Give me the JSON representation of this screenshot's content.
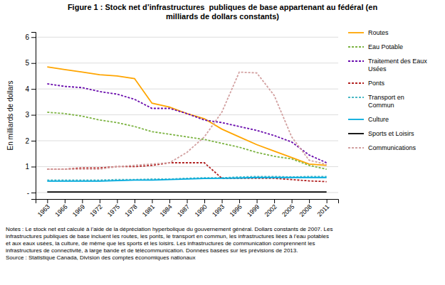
{
  "chart_data": {
    "type": "line",
    "title": "Figure 1 : Stock net d’infrastructures  publiques de base appartenant au fédéral (en\nmilliards de dollars constants)",
    "y_label": "En milliards de dollars",
    "x": [
      1963,
      1966,
      1969,
      1972,
      1975,
      1978,
      1981,
      1984,
      1987,
      1990,
      1993,
      1996,
      1999,
      2002,
      2005,
      2008,
      2011
    ],
    "series": [
      {
        "name": "Routes",
        "color": "#FFA500",
        "line_style": "solid",
        "values": [
          4.85,
          4.75,
          4.65,
          4.55,
          4.5,
          4.4,
          3.45,
          3.3,
          3.05,
          2.85,
          2.45,
          2.15,
          1.85,
          1.6,
          1.35,
          1.1,
          1.05
        ]
      },
      {
        "name": "Eau Potable",
        "color": "#7CB342",
        "line_style": "dotted",
        "values": [
          3.1,
          3.05,
          2.95,
          2.8,
          2.7,
          2.55,
          2.35,
          2.25,
          2.15,
          2.05,
          1.9,
          1.75,
          1.55,
          1.4,
          1.3,
          1.05,
          0.9
        ]
      },
      {
        "name": "Traitement des Eaux\nUsées",
        "color": "#6A0DAD",
        "line_style": "dotted",
        "values": [
          4.2,
          4.1,
          4.05,
          3.9,
          3.8,
          3.6,
          3.25,
          3.25,
          3.05,
          2.8,
          2.7,
          2.55,
          2.4,
          2.2,
          1.95,
          1.45,
          1.15
        ]
      },
      {
        "name": "Ponts",
        "color": "#B22222",
        "line_style": "dotted",
        "values": [
          0.9,
          0.9,
          0.95,
          0.95,
          1.0,
          1.0,
          1.05,
          1.15,
          1.15,
          1.15,
          0.55,
          0.55,
          0.55,
          0.55,
          0.5,
          0.45,
          0.42
        ]
      },
      {
        "name": "Transport en\nCommun",
        "color": "#4BB8C5",
        "line_style": "dotted",
        "values": [
          0.48,
          0.48,
          0.48,
          0.48,
          0.5,
          0.5,
          0.52,
          0.52,
          0.55,
          0.57,
          0.57,
          0.6,
          0.62,
          0.62,
          0.6,
          0.62,
          0.62
        ]
      },
      {
        "name": "Culture",
        "color": "#00AADD",
        "line_style": "solid",
        "values": [
          0.44,
          0.44,
          0.44,
          0.44,
          0.46,
          0.48,
          0.48,
          0.5,
          0.52,
          0.54,
          0.55,
          0.56,
          0.58,
          0.58,
          0.58,
          0.58,
          0.58
        ]
      },
      {
        "name": "Sports et Loisirs",
        "color": "#000000",
        "line_style": "solid",
        "values": [
          0.02,
          0.02,
          0.02,
          0.02,
          0.02,
          0.02,
          0.02,
          0.02,
          0.02,
          0.02,
          0.02,
          0.02,
          0.02,
          0.02,
          0.02,
          0.02,
          0.02
        ]
      },
      {
        "name": "Communications",
        "color": "#D2A0A0",
        "line_style": "dotted",
        "values": [
          0.9,
          0.9,
          0.9,
          0.9,
          1.0,
          1.05,
          1.1,
          1.15,
          1.55,
          2.15,
          3.1,
          4.65,
          4.62,
          3.75,
          2.15,
          1.25,
          1.08
        ]
      }
    ],
    "xlim": [
      1961,
      2013
    ],
    "xticks": [
      1963,
      1966,
      1969,
      1972,
      1975,
      1978,
      1981,
      1984,
      1987,
      1990,
      1993,
      1996,
      1999,
      2002,
      2005,
      2008,
      2011
    ],
    "ylim": [
      -0.25,
      6.2
    ],
    "yticks": [
      {
        "value": 0,
        "label": "-"
      },
      1,
      2,
      3,
      4,
      5,
      6
    ],
    "grid": true,
    "legend": "right",
    "annotations": [
      "Notes : Le stock net est calculé à l’aide de la dépréciation hyperbolique du gouvernement général. Dollars constants de 2007. Les\ninfrastructures publiques de base incluent les routes, les ponts, le transport en commun, les infrastructures liées à l’eau potables\net aux eaux usées, la culture, de même que les sports et les loisirs. Les infrastructures de communication comprennent les\ninfrastructures de connectivité, à large bande et de télécommunication. Données basées sur les prévisions de 2013.\nSource : Statistique Canada, Division des comptes économiques nationaux"
    ]
  }
}
